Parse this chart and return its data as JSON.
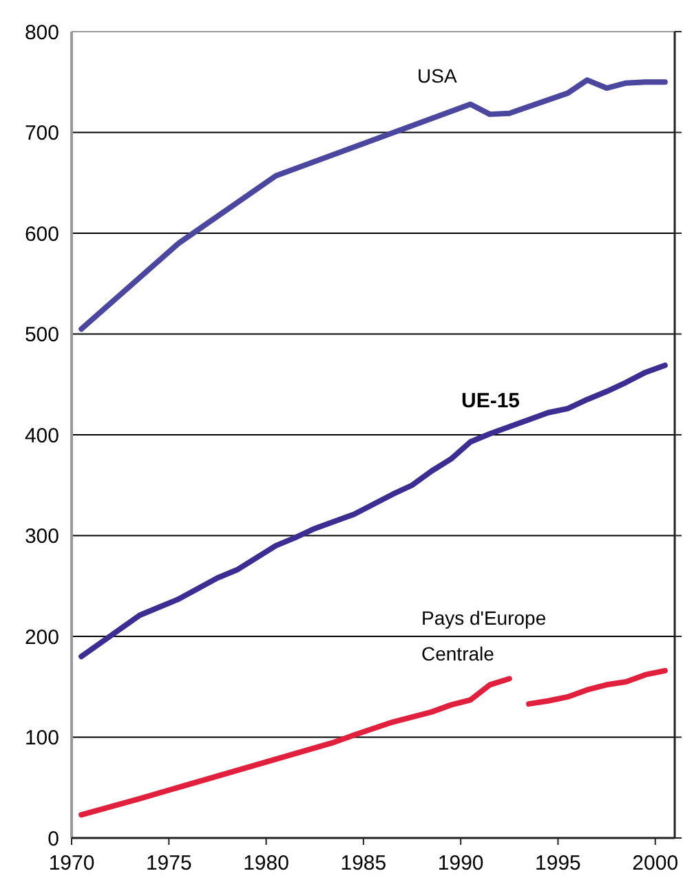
{
  "chart_data": {
    "type": "line",
    "xlim": [
      1970,
      2001
    ],
    "xticks": [
      1970,
      1975,
      1980,
      1985,
      1990,
      1995,
      2000
    ],
    "ylim": [
      0,
      800
    ],
    "yticks": [
      0,
      100,
      200,
      300,
      400,
      500,
      600,
      700,
      800
    ],
    "grid": "y",
    "marker": "none",
    "line_style": "solid",
    "series": [
      {
        "name": "USA",
        "color": "#4b479e",
        "x": [
          1970.5,
          1975.5,
          1980.5,
          1990.5,
          1991.5,
          1992.5,
          1995.5,
          1996.5,
          1997.5,
          1998.5,
          1999.5,
          2000.5
        ],
        "values": [
          505,
          590,
          657,
          728,
          718,
          719,
          739,
          752,
          744,
          749,
          750,
          750
        ]
      },
      {
        "name": "UE-15",
        "color": "#3b2d91",
        "x": [
          1970.5,
          1973.5,
          1974.5,
          1975.5,
          1977.5,
          1978.5,
          1980.5,
          1981.5,
          1982.5,
          1984.5,
          1986.5,
          1987.5,
          1988.5,
          1989.5,
          1990.5,
          1991.5,
          1992.5,
          1994.5,
          1995.5,
          1996.5,
          1997.5,
          1998.5,
          1999.5,
          2000.5
        ],
        "values": [
          180,
          221,
          229,
          237,
          258,
          266,
          290,
          298,
          307,
          321,
          341,
          350,
          364,
          376,
          393,
          401,
          408,
          422,
          426,
          435,
          443,
          452,
          462,
          469
        ]
      },
      {
        "name": "Pays d'Europe Centrale",
        "color": "#e0203c",
        "x": [
          1970.5,
          1973.5,
          1983.5,
          1984.5,
          1986.5,
          1988.5,
          1989.5,
          1990.5,
          1991.5,
          1992.5,
          1993,
          1993.5,
          1994.5,
          1995.5,
          1996.5,
          1997.5,
          1998.5,
          1999.5,
          2000.5
        ],
        "values": [
          23,
          39,
          95,
          102,
          115,
          125,
          132,
          137,
          152,
          158,
          null,
          133,
          136,
          140,
          147,
          152,
          155,
          162,
          166
        ]
      }
    ]
  }
}
